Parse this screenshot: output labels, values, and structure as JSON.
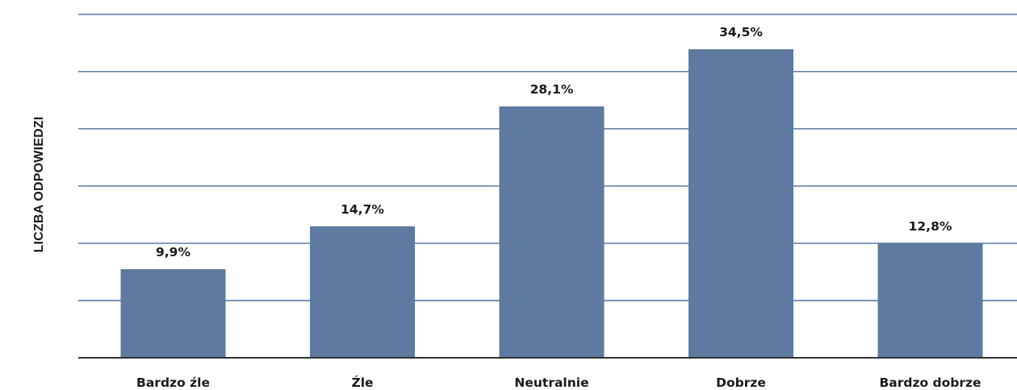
{
  "chart_data": {
    "type": "bar",
    "title": "",
    "xlabel": "",
    "ylabel": "LICZBA ODPOWIEDZI",
    "categories": [
      "Bardzo źle",
      "Źle",
      "Neutralnie",
      "Dobrze",
      "Bardzo dobrze"
    ],
    "values": [
      9.9,
      14.7,
      28.1,
      34.5,
      12.8
    ],
    "value_labels": [
      "9,9%",
      "14,7%",
      "28,1%",
      "34,5%",
      "12,8%"
    ],
    "unit": "%",
    "ylim": [
      0,
      38.5
    ],
    "gridlines": [
      6.4,
      12.8,
      19.2,
      25.6,
      32.0,
      38.4
    ],
    "grid": true,
    "legend": "none",
    "colors": {
      "bar": "#5e7aa0",
      "grid": "#4a6fa0",
      "axis": "#333333",
      "text": "#1a1a1a"
    }
  }
}
